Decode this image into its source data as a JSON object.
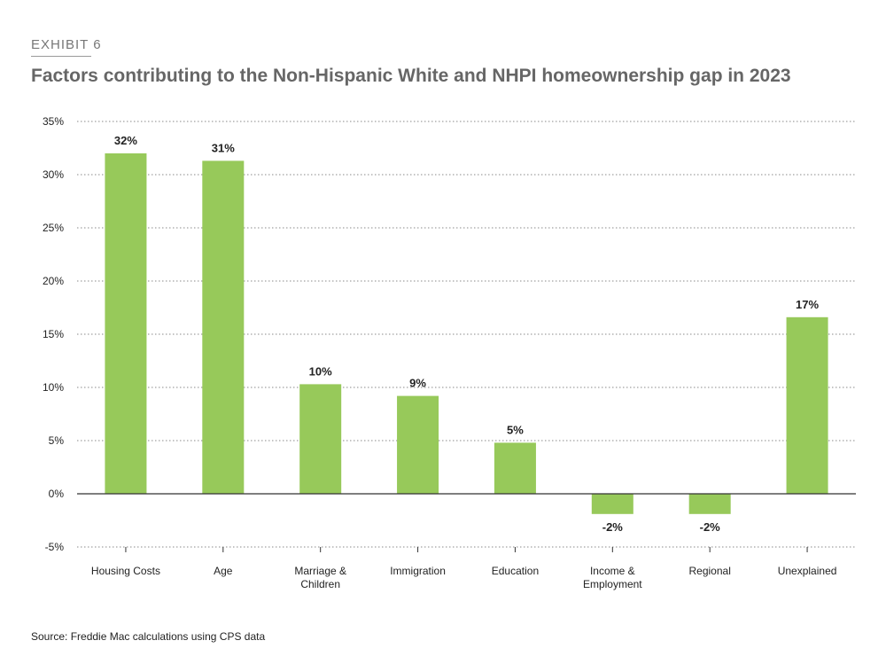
{
  "header": {
    "exhibit": "EXHIBIT 6",
    "title": "Factors contributing to the Non-Hispanic White and NHPI homeownership gap in 2023"
  },
  "footer": {
    "source": "Source: Freddie Mac calculations using CPS data"
  },
  "colors": {
    "bar": "#97c95a",
    "grid": "#8a8a8a",
    "axis": "#333333"
  },
  "chart_data": {
    "type": "bar",
    "categories": [
      [
        "Housing Costs"
      ],
      [
        "Age"
      ],
      [
        "Marriage &",
        "Children"
      ],
      [
        "Immigration"
      ],
      [
        "Education"
      ],
      [
        "Income &",
        "Employment"
      ],
      [
        "Regional"
      ],
      [
        "Unexplained"
      ]
    ],
    "values": [
      32,
      31.3,
      10.3,
      9.2,
      4.8,
      -1.9,
      -1.9,
      16.6
    ],
    "data_labels": [
      "32%",
      "31%",
      "10%",
      "9%",
      "5%",
      "-2%",
      "-2%",
      "17%"
    ],
    "yticks": [
      -5,
      0,
      5,
      10,
      15,
      20,
      25,
      30,
      35
    ],
    "ytick_labels": [
      "-5%",
      "0%",
      "5%",
      "10%",
      "15%",
      "20%",
      "25%",
      "30%",
      "35%"
    ],
    "ylim": [
      -5,
      35
    ],
    "grid": true,
    "legend": "none"
  }
}
